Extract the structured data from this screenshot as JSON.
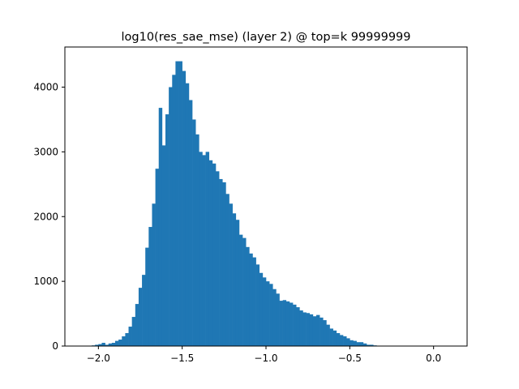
{
  "chart_data": {
    "type": "bar",
    "title": "log10(res_sae_mse) (layer 2) @ top=k 99999999",
    "xlabel": "",
    "ylabel": "",
    "xlim": [
      -2.2,
      0.2
    ],
    "ylim": [
      0,
      4620
    ],
    "grid": false,
    "bar_color": "#1f77b4",
    "bin_width": 0.02,
    "xticks": [
      {
        "value": -2.0,
        "label": "−2.0"
      },
      {
        "value": -1.5,
        "label": "−1.5"
      },
      {
        "value": -1.0,
        "label": "−1.0"
      },
      {
        "value": -0.5,
        "label": "−0.5"
      },
      {
        "value": 0.0,
        "label": "0.0"
      }
    ],
    "yticks": [
      {
        "value": 0,
        "label": "0"
      },
      {
        "value": 1000,
        "label": "1000"
      },
      {
        "value": 2000,
        "label": "2000"
      },
      {
        "value": 3000,
        "label": "3000"
      },
      {
        "value": 4000,
        "label": "4000"
      }
    ],
    "bins": [
      {
        "x": -2.04,
        "y": 10
      },
      {
        "x": -2.02,
        "y": 20
      },
      {
        "x": -2.0,
        "y": 30
      },
      {
        "x": -1.98,
        "y": 50
      },
      {
        "x": -1.96,
        "y": 20
      },
      {
        "x": -1.94,
        "y": 40
      },
      {
        "x": -1.92,
        "y": 50
      },
      {
        "x": -1.9,
        "y": 80
      },
      {
        "x": -1.88,
        "y": 100
      },
      {
        "x": -1.86,
        "y": 150
      },
      {
        "x": -1.84,
        "y": 200
      },
      {
        "x": -1.82,
        "y": 300
      },
      {
        "x": -1.8,
        "y": 450
      },
      {
        "x": -1.78,
        "y": 650
      },
      {
        "x": -1.76,
        "y": 900
      },
      {
        "x": -1.74,
        "y": 1100
      },
      {
        "x": -1.72,
        "y": 1520
      },
      {
        "x": -1.7,
        "y": 1840
      },
      {
        "x": -1.68,
        "y": 2200
      },
      {
        "x": -1.66,
        "y": 2740
      },
      {
        "x": -1.64,
        "y": 3680
      },
      {
        "x": -1.62,
        "y": 3100
      },
      {
        "x": -1.6,
        "y": 3580
      },
      {
        "x": -1.58,
        "y": 4000
      },
      {
        "x": -1.56,
        "y": 4190
      },
      {
        "x": -1.54,
        "y": 4400
      },
      {
        "x": -1.52,
        "y": 4400
      },
      {
        "x": -1.5,
        "y": 4250
      },
      {
        "x": -1.48,
        "y": 4060
      },
      {
        "x": -1.46,
        "y": 3800
      },
      {
        "x": -1.44,
        "y": 3500
      },
      {
        "x": -1.42,
        "y": 3270
      },
      {
        "x": -1.4,
        "y": 3000
      },
      {
        "x": -1.38,
        "y": 2950
      },
      {
        "x": -1.36,
        "y": 3000
      },
      {
        "x": -1.34,
        "y": 2870
      },
      {
        "x": -1.32,
        "y": 2820
      },
      {
        "x": -1.3,
        "y": 2700
      },
      {
        "x": -1.28,
        "y": 2580
      },
      {
        "x": -1.26,
        "y": 2530
      },
      {
        "x": -1.24,
        "y": 2350
      },
      {
        "x": -1.22,
        "y": 2200
      },
      {
        "x": -1.2,
        "y": 2050
      },
      {
        "x": -1.18,
        "y": 1950
      },
      {
        "x": -1.16,
        "y": 1720
      },
      {
        "x": -1.14,
        "y": 1670
      },
      {
        "x": -1.12,
        "y": 1530
      },
      {
        "x": -1.1,
        "y": 1430
      },
      {
        "x": -1.08,
        "y": 1370
      },
      {
        "x": -1.06,
        "y": 1260
      },
      {
        "x": -1.04,
        "y": 1130
      },
      {
        "x": -1.02,
        "y": 1060
      },
      {
        "x": -1.0,
        "y": 1000
      },
      {
        "x": -0.98,
        "y": 960
      },
      {
        "x": -0.96,
        "y": 880
      },
      {
        "x": -0.94,
        "y": 810
      },
      {
        "x": -0.92,
        "y": 700
      },
      {
        "x": -0.9,
        "y": 710
      },
      {
        "x": -0.88,
        "y": 690
      },
      {
        "x": -0.86,
        "y": 670
      },
      {
        "x": -0.84,
        "y": 640
      },
      {
        "x": -0.82,
        "y": 600
      },
      {
        "x": -0.8,
        "y": 550
      },
      {
        "x": -0.78,
        "y": 520
      },
      {
        "x": -0.76,
        "y": 510
      },
      {
        "x": -0.74,
        "y": 490
      },
      {
        "x": -0.72,
        "y": 460
      },
      {
        "x": -0.7,
        "y": 480
      },
      {
        "x": -0.68,
        "y": 440
      },
      {
        "x": -0.66,
        "y": 400
      },
      {
        "x": -0.64,
        "y": 330
      },
      {
        "x": -0.62,
        "y": 270
      },
      {
        "x": -0.6,
        "y": 240
      },
      {
        "x": -0.58,
        "y": 200
      },
      {
        "x": -0.56,
        "y": 170
      },
      {
        "x": -0.54,
        "y": 150
      },
      {
        "x": -0.52,
        "y": 120
      },
      {
        "x": -0.5,
        "y": 90
      },
      {
        "x": -0.48,
        "y": 80
      },
      {
        "x": -0.46,
        "y": 60
      },
      {
        "x": -0.44,
        "y": 60
      },
      {
        "x": -0.42,
        "y": 40
      },
      {
        "x": -0.4,
        "y": 20
      },
      {
        "x": -0.38,
        "y": 20
      },
      {
        "x": -0.36,
        "y": 10
      }
    ]
  }
}
